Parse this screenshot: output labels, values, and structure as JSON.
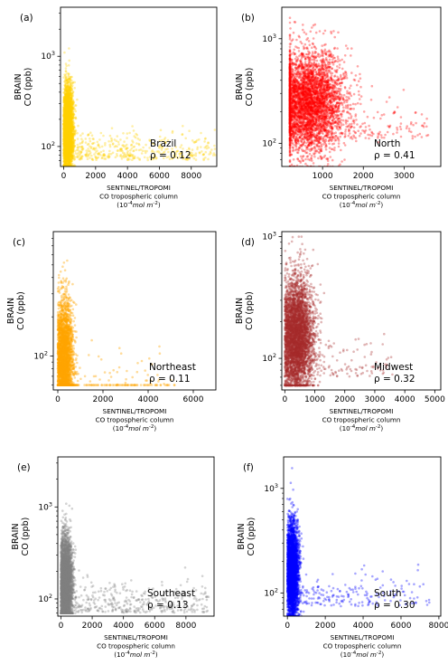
{
  "chart_data": [
    {
      "type": "scatter",
      "panel_label": "(a)",
      "region": "Brazil",
      "rho": "ρ = 0.12",
      "color": "#FFD000",
      "xlabel": "SENTINEL/TROPOMI\nCO tropospheric column\n(10^{-4}mol m^{-2})",
      "ylabel": "BRAIN\nCO (ppb)",
      "xlim": [
        -200,
        9600
      ],
      "ylim_log": [
        60,
        3500
      ],
      "yscale": "log",
      "xticks": [
        "0",
        "2000",
        "4000",
        "6000",
        "8000"
      ],
      "xtick_values": [
        0,
        2000,
        4000,
        6000,
        8000
      ],
      "yticks": [
        "10^2",
        "10^3"
      ],
      "ytick_values": [
        100,
        1000
      ],
      "points": {
        "n": 4200,
        "x_spread": [
          0,
          9500
        ],
        "y_range": [
          60,
          3200
        ],
        "x_core": 250,
        "y_core": 150,
        "tail": 0.12,
        "alpha": 0.35
      }
    },
    {
      "type": "scatter",
      "panel_label": "(b)",
      "region": "North",
      "rho": "ρ = 0.41",
      "color": "#FF0000",
      "xlabel": "SENTINEL/TROPOMI\nCO tropospheric column\n(10^{-4}mol m^{-2})",
      "ylabel": "BRAIN\nCO (ppb)",
      "xlim": [
        0,
        3900
      ],
      "ylim_log": [
        60,
        2000
      ],
      "yscale": "log",
      "xticks": [
        "1000",
        "2000",
        "3000"
      ],
      "xtick_values": [
        1000,
        2000,
        3000
      ],
      "yticks": [
        "10^2",
        "10^3"
      ],
      "ytick_values": [
        100,
        1000
      ],
      "points": {
        "n": 4200,
        "x_spread": [
          200,
          3600
        ],
        "y_range": [
          60,
          1900
        ],
        "x_core": 650,
        "y_core": 250,
        "tail": 0.05,
        "alpha": 0.35
      }
    },
    {
      "type": "scatter",
      "panel_label": "(c)",
      "region": "Northeast",
      "rho": "ρ = 0.11",
      "color": "#FFA500",
      "xlabel": "SENTINEL/TROPOMI\nCO tropospheric column\n(10^{-4}mol m^{-2})",
      "ylabel": "BRAIN\nCO (ppb)",
      "xlim": [
        -200,
        7000
      ],
      "ylim_log": [
        55,
        900
      ],
      "yscale": "log",
      "xticks": [
        "0",
        "2000",
        "4000",
        "6000"
      ],
      "xtick_values": [
        0,
        2000,
        4000,
        6000
      ],
      "yticks": [
        "10^2"
      ],
      "ytick_values": [
        100
      ],
      "points": {
        "n": 3000,
        "x_spread": [
          0,
          5200
        ],
        "y_range": [
          60,
          800
        ],
        "x_core": 280,
        "y_core": 90,
        "tail": 0.05,
        "alpha": 0.4
      }
    },
    {
      "type": "scatter",
      "panel_label": "(d)",
      "region": "Midwest",
      "rho": "ρ = 0.32",
      "color": "#A52A2A",
      "xlabel": "SENTINEL/TROPOMI\nCO tropospheric column\n(10^{-4}mol m^{-2})",
      "ylabel": "BRAIN\nCO (ppb)",
      "xlim": [
        -100,
        5200
      ],
      "ylim_log": [
        55,
        1100
      ],
      "yscale": "log",
      "xticks": [
        "0",
        "1000",
        "2000",
        "3000",
        "4000",
        "5000"
      ],
      "xtick_values": [
        0,
        1000,
        2000,
        3000,
        4000,
        5000
      ],
      "yticks": [
        "10^2",
        "10^3"
      ],
      "ytick_values": [
        100,
        1000
      ],
      "points": {
        "n": 4200,
        "x_spread": [
          0,
          3600
        ],
        "y_range": [
          60,
          1000
        ],
        "x_core": 400,
        "y_core": 150,
        "tail": 0.04,
        "alpha": 0.35
      }
    },
    {
      "type": "scatter",
      "panel_label": "(e)",
      "region": "Southeast",
      "rho": "ρ = 0.13",
      "color": "#808080",
      "xlabel": "SENTINEL/TROPOMI\nCO tropospheric column\n(10^{-4}mol m^{-2})",
      "ylabel": "BRAIN\nCO (ppb)",
      "xlim": [
        -200,
        9800
      ],
      "ylim_log": [
        65,
        3500
      ],
      "yscale": "log",
      "xticks": [
        "0",
        "2000",
        "4000",
        "6000",
        "8000"
      ],
      "xtick_values": [
        0,
        2000,
        4000,
        6000,
        8000
      ],
      "yticks": [
        "10^2",
        "10^3"
      ],
      "ytick_values": [
        100,
        1000
      ],
      "points": {
        "n": 4200,
        "x_spread": [
          0,
          9500
        ],
        "y_range": [
          70,
          3200
        ],
        "x_core": 300,
        "y_core": 150,
        "tail": 0.1,
        "alpha": 0.35
      }
    },
    {
      "type": "scatter",
      "panel_label": "(f)",
      "region": "South",
      "rho": "ρ = 0.30",
      "color": "#0000FF",
      "xlabel": "SENTINEL/TROPOMI\nCO tropospheric column\n(10^{-4}mol m^{-2})",
      "ylabel": "BRAIN\nCO (ppb)",
      "xlim": [
        -200,
        8100
      ],
      "ylim_log": [
        60,
        2000
      ],
      "yscale": "log",
      "xticks": [
        "0",
        "2000",
        "4000",
        "6000",
        "8000"
      ],
      "xtick_values": [
        0,
        2000,
        4000,
        6000,
        8000
      ],
      "yticks": [
        "10^2",
        "10^3"
      ],
      "ytick_values": [
        100,
        1000
      ],
      "points": {
        "n": 3600,
        "x_spread": [
          0,
          7500
        ],
        "y_range": [
          60,
          1900
        ],
        "x_core": 250,
        "y_core": 160,
        "tail": 0.06,
        "alpha": 0.35
      }
    }
  ]
}
